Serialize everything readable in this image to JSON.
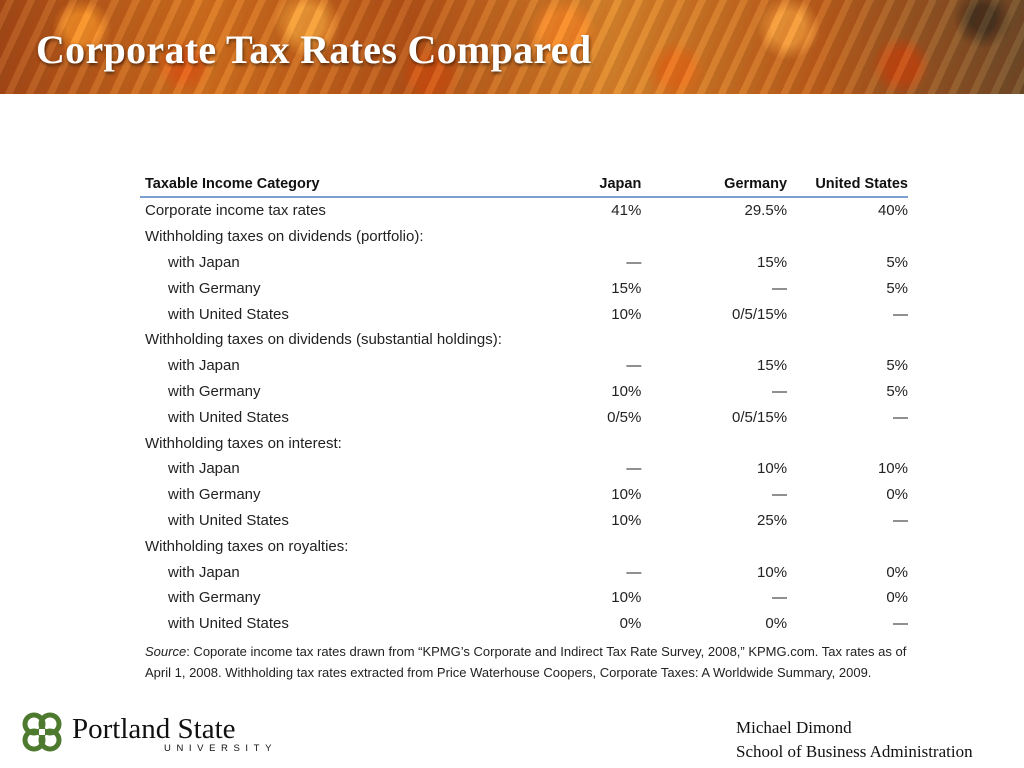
{
  "slide": {
    "title": "Corporate Tax Rates Compared"
  },
  "table": {
    "headers": [
      "Taxable Income Category",
      "Japan",
      "Germany",
      "United States"
    ],
    "rows": [
      {
        "label": "Corporate income tax rates",
        "japan": "41%",
        "germany": "29.5%",
        "us": "40%"
      },
      {
        "label": "Withholding taxes on dividends (portfolio):",
        "japan": "",
        "germany": "",
        "us": ""
      },
      {
        "label": "with Japan",
        "japan": "—",
        "germany": "15%",
        "us": "5%"
      },
      {
        "label": "with Germany",
        "japan": "15%",
        "germany": "—",
        "us": "5%"
      },
      {
        "label": "with United States",
        "japan": "10%",
        "germany": "0/5/15%",
        "us": "—"
      },
      {
        "label": "Withholding taxes on dividends (substantial holdings):",
        "japan": "",
        "germany": "",
        "us": ""
      },
      {
        "label": "with Japan",
        "japan": "—",
        "germany": "15%",
        "us": "5%"
      },
      {
        "label": "with Germany",
        "japan": "10%",
        "germany": "—",
        "us": "5%"
      },
      {
        "label": "with United States",
        "japan": "0/5%",
        "germany": "0/5/15%",
        "us": "—"
      },
      {
        "label": "Withholding taxes on interest:",
        "japan": "",
        "germany": "",
        "us": ""
      },
      {
        "label": "with Japan",
        "japan": "—",
        "germany": "10%",
        "us": "10%"
      },
      {
        "label": "with Germany",
        "japan": "10%",
        "germany": "—",
        "us": "0%"
      },
      {
        "label": "with United States",
        "japan": "10%",
        "germany": "25%",
        "us": "—"
      },
      {
        "label": "Withholding taxes on royalties:",
        "japan": "",
        "germany": "",
        "us": ""
      },
      {
        "label": "with Japan",
        "japan": "—",
        "germany": "10%",
        "us": "0%"
      },
      {
        "label": "with Germany",
        "japan": "10%",
        "germany": "—",
        "us": "0%"
      },
      {
        "label": "with United States",
        "japan": "0%",
        "germany": "0%",
        "us": "—"
      }
    ]
  },
  "source": {
    "label": "Source",
    "text": ": Coporate income tax rates drawn from “KPMG’s Corporate and Indirect Tax Rate Survey, 2008,” KPMG.com. Tax rates as of April 1, 2008. Withholding tax rates extracted from Price Waterhouse Coopers, Corporate Taxes: A Worldwide Summary, 2009."
  },
  "logo": {
    "name": "Portland State",
    "sub": "UNIVERSITY",
    "icon": "psu-leaf-logo-icon",
    "color": "#4d7a2e"
  },
  "presenter": {
    "name": "Michael Dimond",
    "dept": "School of Business Administration"
  }
}
